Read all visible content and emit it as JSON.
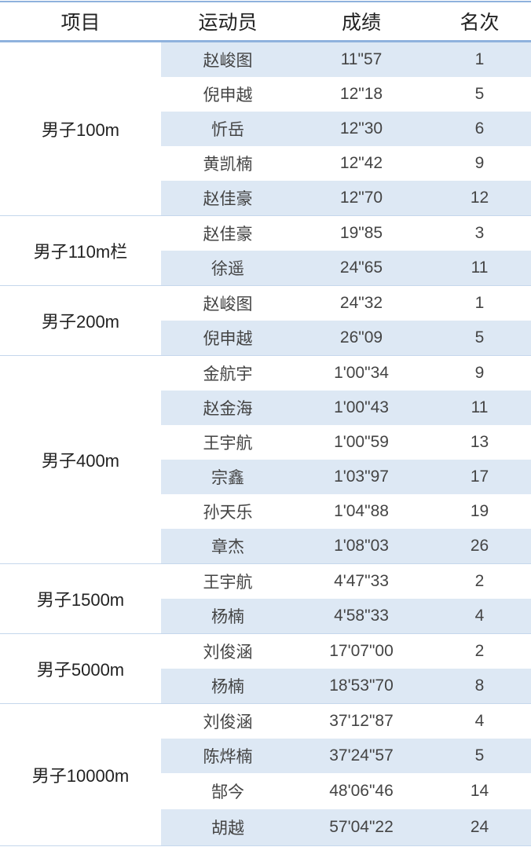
{
  "headers": {
    "event": "项目",
    "athlete": "运动员",
    "result": "成绩",
    "rank": "名次"
  },
  "groups": [
    {
      "event": "男子100m",
      "rows": [
        [
          "赵峻图",
          "11\"57",
          "1"
        ],
        [
          "倪申越",
          "12\"18",
          "5"
        ],
        [
          "忻岳",
          "12\"30",
          "6"
        ],
        [
          "黄凯楠",
          "12\"42",
          "9"
        ],
        [
          "赵佳豪",
          "12\"70",
          "12"
        ]
      ]
    },
    {
      "event": "男子110m栏",
      "rows": [
        [
          "赵佳豪",
          "19\"85",
          "3"
        ],
        [
          "徐遥",
          "24\"65",
          "11"
        ]
      ]
    },
    {
      "event": "男子200m",
      "rows": [
        [
          "赵峻图",
          "24\"32",
          "1"
        ],
        [
          "倪申越",
          "26\"09",
          "5"
        ]
      ]
    },
    {
      "event": "男子400m",
      "rows": [
        [
          "金航宇",
          "1'00\"34",
          "9"
        ],
        [
          "赵金海",
          "1'00\"43",
          "11"
        ],
        [
          "王宇航",
          "1'00\"59",
          "13"
        ],
        [
          "宗鑫",
          "1'03\"97",
          "17"
        ],
        [
          "孙天乐",
          "1'04\"88",
          "19"
        ],
        [
          "章杰",
          "1'08\"03",
          "26"
        ]
      ]
    },
    {
      "event": "男子1500m",
      "rows": [
        [
          "王宇航",
          "4'47\"33",
          "2"
        ],
        [
          "杨楠",
          "4'58\"33",
          "4"
        ]
      ]
    },
    {
      "event": "男子5000m",
      "rows": [
        [
          "刘俊涵",
          "17'07\"00",
          "2"
        ],
        [
          "杨楠",
          "18'53\"70",
          "8"
        ]
      ]
    },
    {
      "event": "男子10000m",
      "rows": [
        [
          "刘俊涵",
          "37'12\"87",
          "4"
        ],
        [
          "陈烨楠",
          "37'24\"57",
          "5"
        ],
        [
          "郜今",
          "48'06\"46",
          "14"
        ],
        [
          "胡越",
          "57'04\"22",
          "24"
        ]
      ]
    }
  ],
  "colors": {
    "band": "#dde8f4",
    "rule": "#8fb2dd"
  }
}
